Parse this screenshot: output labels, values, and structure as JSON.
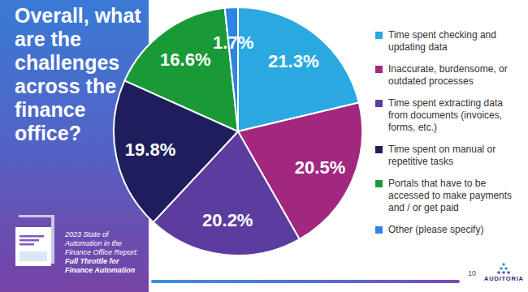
{
  "chart_data": {
    "type": "pie",
    "title": "Overall, what are the challenges across the finance office?",
    "categories": [
      "Time spent checking and updating data",
      "Inaccurate, burdensome, or outdated processes",
      "Time spent extracting data from documents (invoices, forms, etc.)",
      "Time spent on manual or repetitive tasks",
      "Portals that have to be accessed to make payments and / or get paid",
      "Other (please specify)"
    ],
    "values": [
      21.3,
      20.5,
      20.2,
      19.8,
      16.6,
      1.7
    ],
    "value_labels": [
      "21.3%",
      "20.5%",
      "20.2%",
      "19.8%",
      "16.6%",
      "1.7%"
    ],
    "colors": [
      "#2aa9e0",
      "#a2287f",
      "#5c3c9f",
      "#1f1e5c",
      "#1a9a36",
      "#2d84e2"
    ],
    "data_labels": true,
    "legend": "right"
  },
  "slide": {
    "report_title": [
      "2023 State of Automation in the Finance Office Report:",
      "Full Throttle for Finance Automation"
    ],
    "page_number": "10",
    "logo": "AUDITORIA"
  }
}
